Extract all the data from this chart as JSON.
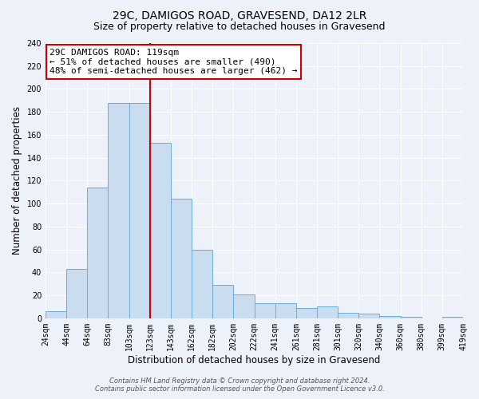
{
  "title_line1": "29C, DAMIGOS ROAD, GRAVESEND, DA12 2LR",
  "title_line2": "Size of property relative to detached houses in Gravesend",
  "xlabel": "Distribution of detached houses by size in Gravesend",
  "ylabel": "Number of detached properties",
  "bin_labels": [
    "24sqm",
    "44sqm",
    "64sqm",
    "83sqm",
    "103sqm",
    "123sqm",
    "143sqm",
    "162sqm",
    "182sqm",
    "202sqm",
    "222sqm",
    "241sqm",
    "261sqm",
    "281sqm",
    "301sqm",
    "320sqm",
    "340sqm",
    "360sqm",
    "380sqm",
    "399sqm",
    "419sqm"
  ],
  "bar_heights": [
    6,
    43,
    114,
    188,
    188,
    153,
    104,
    60,
    29,
    21,
    13,
    13,
    9,
    10,
    5,
    4,
    2,
    1,
    0,
    1
  ],
  "bar_color": "#c9dcf0",
  "bar_edge_color": "#6aaed6",
  "vline_color": "#cc0000",
  "annotation_title": "29C DAMIGOS ROAD: 119sqm",
  "annotation_line1": "← 51% of detached houses are smaller (490)",
  "annotation_line2": "48% of semi-detached houses are larger (462) →",
  "annotation_box_color": "#ffffff",
  "annotation_box_edge": "#cc0000",
  "ylim": [
    0,
    240
  ],
  "yticks": [
    0,
    20,
    40,
    60,
    80,
    100,
    120,
    140,
    160,
    180,
    200,
    220,
    240
  ],
  "footer_line1": "Contains HM Land Registry data © Crown copyright and database right 2024.",
  "footer_line2": "Contains public sector information licensed under the Open Government Licence v3.0.",
  "bg_color": "#edf2fa",
  "grid_color": "#ffffff",
  "title_fontsize": 10,
  "subtitle_fontsize": 9,
  "axis_label_fontsize": 8.5,
  "tick_fontsize": 7,
  "footer_fontsize": 6,
  "annotation_fontsize": 8
}
